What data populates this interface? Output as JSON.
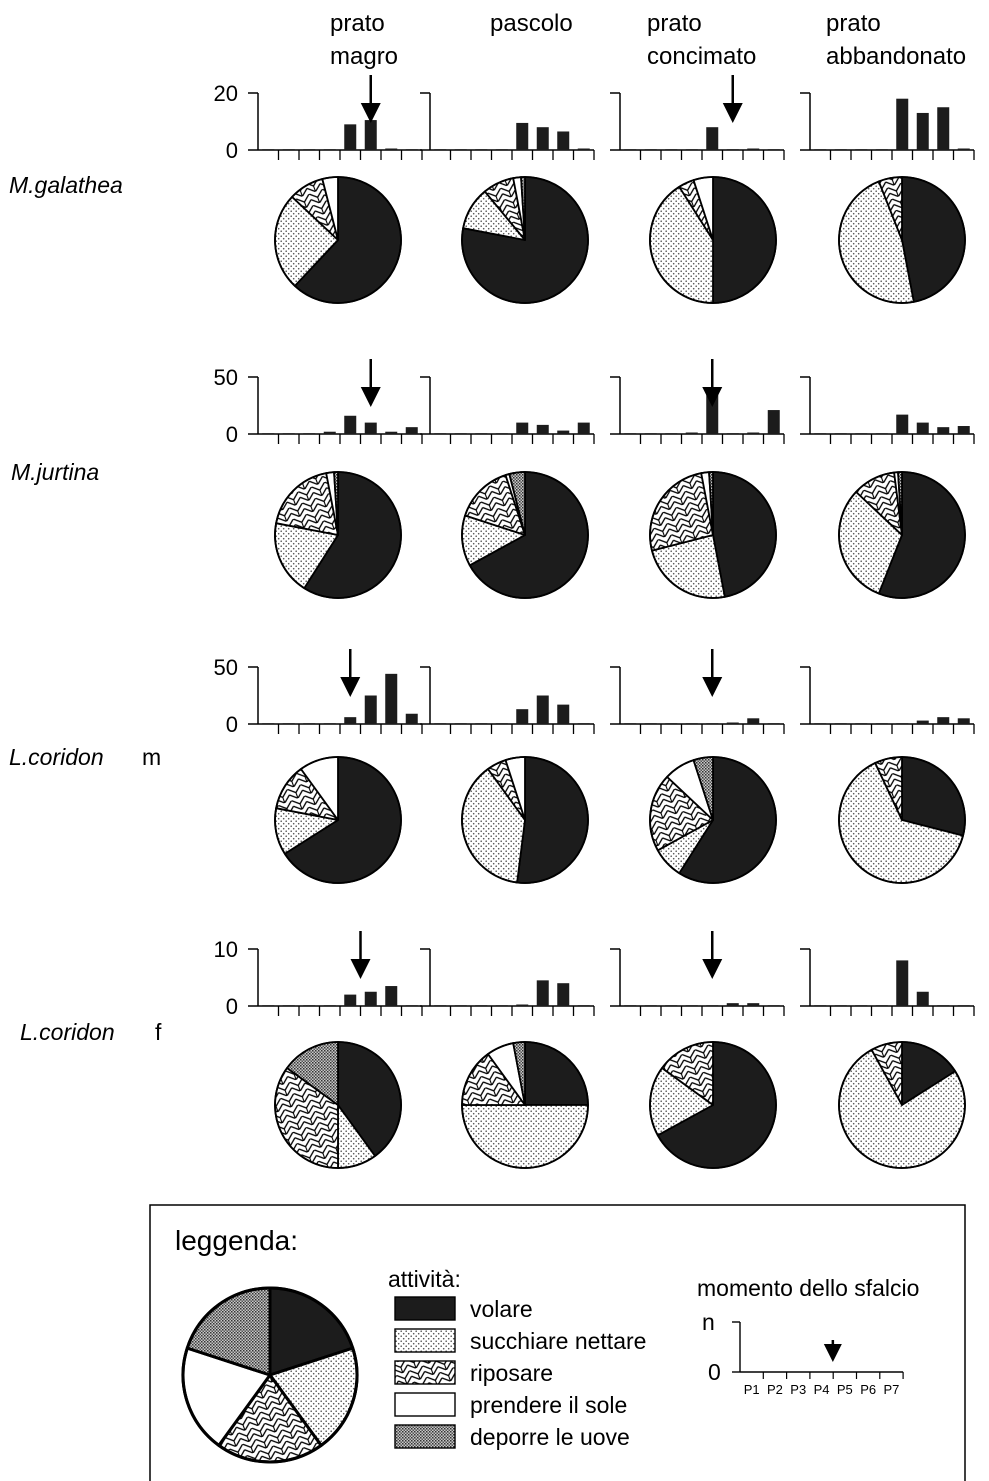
{
  "chart_data": {
    "type": "bar",
    "columns": [
      "prato\nmagro",
      "pascolo",
      "prato\nconcimato",
      "prato\nabbandonato"
    ],
    "activities": [
      "volare",
      "succhiare nettare",
      "riposare",
      "prendere il sole",
      "deporre le uove"
    ],
    "periods": [
      "P1",
      "P2",
      "P3",
      "P4",
      "P5",
      "P6",
      "P7"
    ],
    "rows": [
      {
        "name": "M.galathea",
        "sex": "",
        "ylim": [
          0,
          20
        ],
        "ytick_labels": [
          "20",
          "0"
        ],
        "panels": [
          {
            "bars": [
              0,
              0,
              0,
              0,
              9,
              10.5,
              0.5,
              0
            ],
            "mowing": 5.5,
            "pie": [
              62,
              25,
              9,
              4,
              0
            ]
          },
          {
            "bars": [
              0,
              0,
              0,
              0,
              9.5,
              8,
              6.5,
              0.5
            ],
            "mowing": null,
            "pie": [
              78,
              11,
              8,
              2,
              1
            ]
          },
          {
            "bars": [
              0,
              0,
              0,
              0,
              8,
              0,
              0.5,
              0
            ],
            "mowing": 5.5,
            "pie": [
              50,
              41,
              4,
              5,
              0
            ]
          },
          {
            "bars": [
              0,
              0,
              0,
              0,
              18,
              13,
              15,
              0.5
            ],
            "mowing": null,
            "pie": [
              47,
              47,
              6,
              0,
              0
            ]
          }
        ]
      },
      {
        "name": "M.jurtina",
        "sex": "",
        "ylim": [
          0,
          50
        ],
        "ytick_labels": [
          "50",
          "0"
        ],
        "panels": [
          {
            "bars": [
              0,
              0,
              0,
              2,
              16,
              10,
              2,
              6
            ],
            "mowing": 5.5,
            "pie": [
              59,
              19,
              19,
              2,
              1
            ]
          },
          {
            "bars": [
              0,
              0,
              0,
              0,
              10,
              8,
              3,
              10
            ],
            "mowing": null,
            "pie": [
              67,
              13,
              15,
              1,
              4
            ]
          },
          {
            "bars": [
              0,
              0,
              0,
              1,
              41,
              0,
              1,
              21
            ],
            "mowing": 4.5,
            "pie": [
              47,
              24,
              26,
              2,
              1
            ]
          },
          {
            "bars": [
              0,
              0,
              0,
              0,
              17,
              10,
              6,
              7
            ],
            "mowing": null,
            "pie": [
              56,
              31,
              11,
              1,
              1
            ]
          }
        ]
      },
      {
        "name": "L.coridon",
        "sex": "m",
        "ylim": [
          0,
          50
        ],
        "ytick_labels": [
          "50",
          "0"
        ],
        "panels": [
          {
            "bars": [
              0,
              0,
              0,
              0,
              6,
              25,
              44,
              9
            ],
            "mowing": 4.5,
            "pie": [
              66,
              12,
              12,
              10,
              0
            ]
          },
          {
            "bars": [
              0,
              0,
              0,
              0,
              13,
              25,
              17,
              0
            ],
            "mowing": null,
            "pie": [
              52,
              38,
              5,
              5,
              0
            ]
          },
          {
            "bars": [
              0,
              0,
              0,
              0,
              0,
              1,
              5,
              0
            ],
            "mowing": 4.5,
            "pie": [
              59,
              8,
              20,
              8,
              5
            ]
          },
          {
            "bars": [
              0,
              0,
              0,
              0,
              0,
              3,
              6,
              5
            ],
            "mowing": null,
            "pie": [
              29,
              64,
              7,
              0,
              0
            ]
          }
        ]
      },
      {
        "name": "L.coridon",
        "sex": "f",
        "ylim": [
          0,
          10
        ],
        "ytick_labels": [
          "10",
          "0"
        ],
        "panels": [
          {
            "bars": [
              0,
              0,
              0,
              0,
              2,
              2.5,
              3.5,
              0
            ],
            "mowing": 5.0,
            "pie": [
              40,
              10,
              35,
              0,
              15
            ]
          },
          {
            "bars": [
              0,
              0,
              0,
              0,
              0.2,
              4.5,
              4,
              0
            ],
            "mowing": null,
            "pie": [
              25,
              50,
              15,
              7,
              3
            ]
          },
          {
            "bars": [
              0,
              0,
              0,
              0,
              0,
              0.5,
              0.5,
              0
            ],
            "mowing": 4.5,
            "pie": [
              67,
              18,
              15,
              0,
              0
            ]
          },
          {
            "bars": [
              0,
              0,
              0,
              0,
              8,
              2.5,
              0,
              0
            ],
            "mowing": null,
            "pie": [
              16,
              76,
              8,
              0,
              0
            ]
          }
        ]
      }
    ],
    "legend": {
      "title": "leggenda:",
      "activity_heading": "attività:",
      "pie": [
        20,
        20,
        20,
        20,
        20
      ],
      "mowing_title": "momento dello sfalcio",
      "y_label": "n",
      "y_zero": "0",
      "mowing": 4.5
    }
  }
}
